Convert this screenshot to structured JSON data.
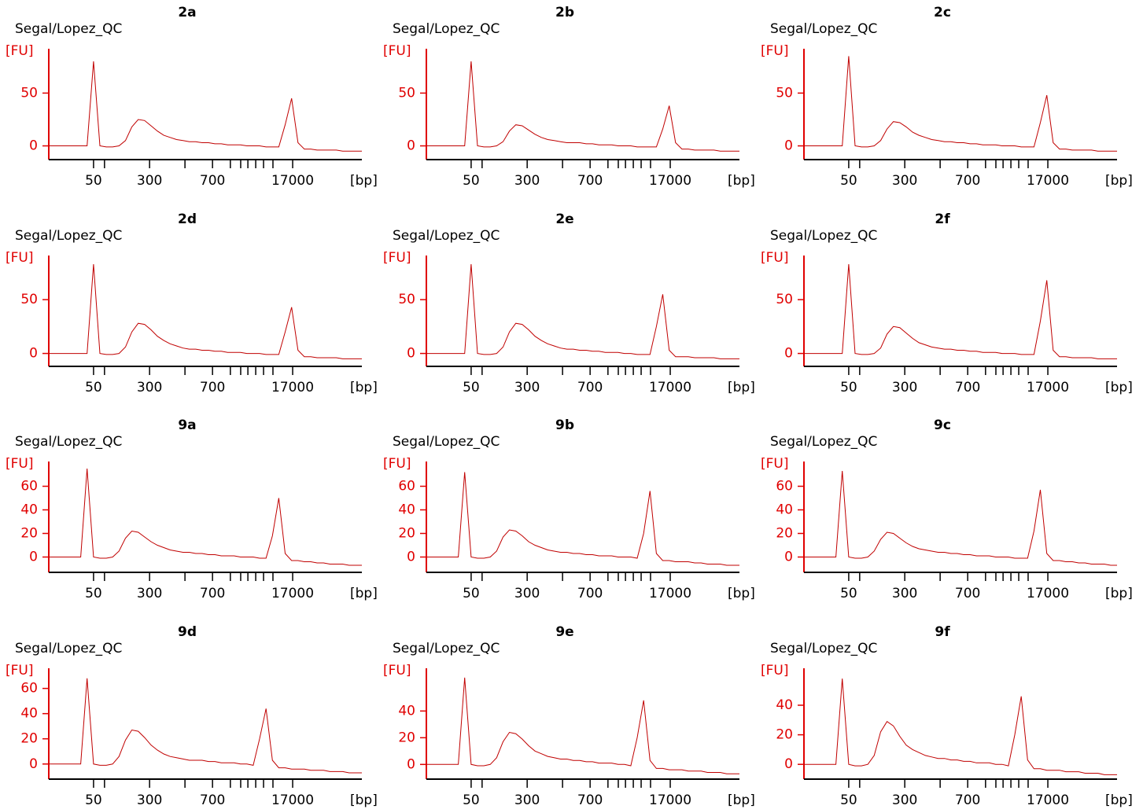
{
  "chart_data": [
    {
      "type": "line",
      "title": "2a",
      "subtitle": "Segal/Lopez_QC",
      "y_label": "[FU]",
      "x_label": "[bp]",
      "color": "#c00000",
      "ylim": [
        -13,
        92
      ],
      "yticks": [
        0,
        50
      ],
      "xticks": [
        50,
        300,
        700,
        17000
      ],
      "values": [
        0,
        0,
        0,
        0,
        0,
        0,
        0,
        80,
        0,
        -1,
        -1,
        0,
        5,
        18,
        25,
        24,
        19,
        14,
        10,
        8,
        6,
        5,
        4,
        4,
        3,
        3,
        2,
        2,
        1,
        1,
        1,
        0,
        0,
        0,
        -1,
        -1,
        -1,
        20,
        45,
        3,
        -3,
        -3,
        -4,
        -4,
        -4,
        -4,
        -5,
        -5,
        -5,
        -5
      ]
    },
    {
      "type": "line",
      "title": "2b",
      "subtitle": "Segal/Lopez_QC",
      "y_label": "[FU]",
      "x_label": "[bp]",
      "color": "#c00000",
      "ylim": [
        -13,
        92
      ],
      "yticks": [
        0,
        50
      ],
      "xticks": [
        50,
        300,
        700,
        17000
      ],
      "values": [
        0,
        0,
        0,
        0,
        0,
        0,
        0,
        80,
        0,
        -1,
        -1,
        0,
        4,
        14,
        20,
        19,
        15,
        11,
        8,
        6,
        5,
        4,
        3,
        3,
        3,
        2,
        2,
        1,
        1,
        1,
        0,
        0,
        0,
        -1,
        -1,
        -1,
        -1,
        16,
        38,
        3,
        -3,
        -3,
        -4,
        -4,
        -4,
        -4,
        -5,
        -5,
        -5,
        -5
      ]
    },
    {
      "type": "line",
      "title": "2c",
      "subtitle": "Segal/Lopez_QC",
      "y_label": "[FU]",
      "x_label": "[bp]",
      "color": "#c00000",
      "ylim": [
        -13,
        92
      ],
      "yticks": [
        0,
        50
      ],
      "xticks": [
        50,
        300,
        700,
        17000
      ],
      "values": [
        0,
        0,
        0,
        0,
        0,
        0,
        0,
        85,
        0,
        -1,
        -1,
        0,
        5,
        16,
        23,
        22,
        18,
        13,
        10,
        8,
        6,
        5,
        4,
        4,
        3,
        3,
        2,
        2,
        1,
        1,
        1,
        0,
        0,
        0,
        -1,
        -1,
        -1,
        22,
        48,
        3,
        -3,
        -3,
        -4,
        -4,
        -4,
        -4,
        -5,
        -5,
        -5,
        -5
      ]
    },
    {
      "type": "line",
      "title": "2d",
      "subtitle": "Segal/Lopez_QC",
      "y_label": "[FU]",
      "x_label": "[bp]",
      "color": "#c00000",
      "ylim": [
        -12,
        91
      ],
      "yticks": [
        0,
        50
      ],
      "xticks": [
        50,
        300,
        700,
        17000
      ],
      "values": [
        0,
        0,
        0,
        0,
        0,
        0,
        0,
        83,
        0,
        -1,
        -1,
        0,
        6,
        20,
        28,
        27,
        22,
        16,
        12,
        9,
        7,
        5,
        4,
        4,
        3,
        3,
        2,
        2,
        1,
        1,
        1,
        0,
        0,
        0,
        -1,
        -1,
        -1,
        20,
        43,
        3,
        -3,
        -3,
        -4,
        -4,
        -4,
        -4,
        -5,
        -5,
        -5,
        -5
      ]
    },
    {
      "type": "line",
      "title": "2e",
      "subtitle": "Segal/Lopez_QC",
      "y_label": "[FU]",
      "x_label": "[bp]",
      "color": "#c00000",
      "ylim": [
        -12,
        91
      ],
      "yticks": [
        0,
        50
      ],
      "xticks": [
        50,
        300,
        700,
        17000
      ],
      "values": [
        0,
        0,
        0,
        0,
        0,
        0,
        0,
        83,
        0,
        -1,
        -1,
        0,
        6,
        20,
        28,
        27,
        22,
        16,
        12,
        9,
        7,
        5,
        4,
        4,
        3,
        3,
        2,
        2,
        1,
        1,
        1,
        0,
        0,
        -1,
        -1,
        -1,
        25,
        55,
        3,
        -3,
        -3,
        -3,
        -4,
        -4,
        -4,
        -4,
        -5,
        -5,
        -5,
        -5
      ]
    },
    {
      "type": "line",
      "title": "2f",
      "subtitle": "Segal/Lopez_QC",
      "y_label": "[FU]",
      "x_label": "[bp]",
      "color": "#c00000",
      "ylim": [
        -12,
        91
      ],
      "yticks": [
        0,
        50
      ],
      "xticks": [
        50,
        300,
        700,
        17000
      ],
      "values": [
        0,
        0,
        0,
        0,
        0,
        0,
        0,
        83,
        0,
        -1,
        -1,
        0,
        5,
        18,
        25,
        24,
        19,
        14,
        10,
        8,
        6,
        5,
        4,
        4,
        3,
        3,
        2,
        2,
        1,
        1,
        1,
        0,
        0,
        0,
        -1,
        -1,
        -1,
        30,
        68,
        3,
        -3,
        -3,
        -4,
        -4,
        -4,
        -4,
        -5,
        -5,
        -5,
        -5
      ]
    },
    {
      "type": "line",
      "title": "9a",
      "subtitle": "Segal/Lopez_QC",
      "y_label": "[FU]",
      "x_label": "[bp]",
      "color": "#c00000",
      "ylim": [
        -13,
        81
      ],
      "yticks": [
        0,
        20,
        40,
        60
      ],
      "xticks": [
        50,
        300,
        700,
        17000
      ],
      "values": [
        0,
        0,
        0,
        0,
        0,
        0,
        75,
        0,
        -1,
        -1,
        0,
        5,
        16,
        22,
        21,
        17,
        13,
        10,
        8,
        6,
        5,
        4,
        4,
        3,
        3,
        2,
        2,
        1,
        1,
        1,
        0,
        0,
        0,
        -1,
        -1,
        18,
        50,
        3,
        -3,
        -3,
        -4,
        -4,
        -5,
        -5,
        -6,
        -6,
        -6,
        -7,
        -7,
        -7
      ]
    },
    {
      "type": "line",
      "title": "9b",
      "subtitle": "Segal/Lopez_QC",
      "y_label": "[FU]",
      "x_label": "[bp]",
      "color": "#c00000",
      "ylim": [
        -13,
        81
      ],
      "yticks": [
        0,
        20,
        40,
        60
      ],
      "xticks": [
        50,
        300,
        700,
        17000
      ],
      "values": [
        0,
        0,
        0,
        0,
        0,
        0,
        72,
        0,
        -1,
        -1,
        0,
        5,
        17,
        23,
        22,
        18,
        13,
        10,
        8,
        6,
        5,
        4,
        4,
        3,
        3,
        2,
        2,
        1,
        1,
        1,
        0,
        0,
        0,
        -1,
        20,
        56,
        3,
        -3,
        -3,
        -4,
        -4,
        -4,
        -5,
        -5,
        -6,
        -6,
        -6,
        -7,
        -7,
        -7
      ]
    },
    {
      "type": "line",
      "title": "9c",
      "subtitle": "Segal/Lopez_QC",
      "y_label": "[FU]",
      "x_label": "[bp]",
      "color": "#c00000",
      "ylim": [
        -13,
        81
      ],
      "yticks": [
        0,
        20,
        40,
        60
      ],
      "xticks": [
        50,
        300,
        700,
        17000
      ],
      "values": [
        0,
        0,
        0,
        0,
        0,
        0,
        73,
        0,
        -1,
        -1,
        0,
        5,
        15,
        21,
        20,
        16,
        12,
        9,
        7,
        6,
        5,
        4,
        4,
        3,
        3,
        2,
        2,
        1,
        1,
        1,
        0,
        0,
        0,
        -1,
        -1,
        -1,
        22,
        57,
        3,
        -3,
        -3,
        -4,
        -4,
        -5,
        -5,
        -6,
        -6,
        -6,
        -7,
        -7
      ]
    },
    {
      "type": "line",
      "title": "9d",
      "subtitle": "Segal/Lopez_QC",
      "y_label": "[FU]",
      "x_label": "[bp]",
      "color": "#c00000",
      "ylim": [
        -12,
        76
      ],
      "yticks": [
        0,
        20,
        40,
        60
      ],
      "xticks": [
        50,
        300,
        700,
        17000
      ],
      "values": [
        0,
        0,
        0,
        0,
        0,
        0,
        68,
        0,
        -1,
        -1,
        0,
        6,
        19,
        27,
        26,
        21,
        15,
        11,
        8,
        6,
        5,
        4,
        3,
        3,
        3,
        2,
        2,
        1,
        1,
        1,
        0,
        0,
        -1,
        20,
        44,
        3,
        -3,
        -3,
        -4,
        -4,
        -4,
        -5,
        -5,
        -5,
        -6,
        -6,
        -6,
        -7,
        -7,
        -7
      ]
    },
    {
      "type": "line",
      "title": "9e",
      "subtitle": "Segal/Lopez_QC",
      "y_label": "[FU]",
      "x_label": "[bp]",
      "color": "#c00000",
      "ylim": [
        -11,
        72
      ],
      "yticks": [
        0,
        20,
        40
      ],
      "xticks": [
        50,
        300,
        700,
        17000
      ],
      "values": [
        0,
        0,
        0,
        0,
        0,
        0,
        65,
        0,
        -1,
        -1,
        0,
        5,
        17,
        24,
        23,
        19,
        14,
        10,
        8,
        6,
        5,
        4,
        4,
        3,
        3,
        2,
        2,
        1,
        1,
        1,
        0,
        0,
        -1,
        20,
        48,
        3,
        -3,
        -3,
        -4,
        -4,
        -4,
        -5,
        -5,
        -5,
        -6,
        -6,
        -6,
        -7,
        -7,
        -7
      ]
    },
    {
      "type": "line",
      "title": "9f",
      "subtitle": "Segal/Lopez_QC",
      "y_label": "[FU]",
      "x_label": "[bp]",
      "color": "#c00000",
      "ylim": [
        -10,
        65
      ],
      "yticks": [
        0,
        20,
        40
      ],
      "xticks": [
        50,
        300,
        700,
        17000
      ],
      "values": [
        0,
        0,
        0,
        0,
        0,
        0,
        58,
        0,
        -1,
        -1,
        0,
        6,
        22,
        29,
        26,
        19,
        13,
        10,
        8,
        6,
        5,
        4,
        4,
        3,
        3,
        2,
        2,
        1,
        1,
        1,
        0,
        0,
        -1,
        20,
        46,
        3,
        -3,
        -3,
        -4,
        -4,
        -4,
        -5,
        -5,
        -5,
        -6,
        -6,
        -6,
        -7,
        -7,
        -7
      ]
    }
  ]
}
